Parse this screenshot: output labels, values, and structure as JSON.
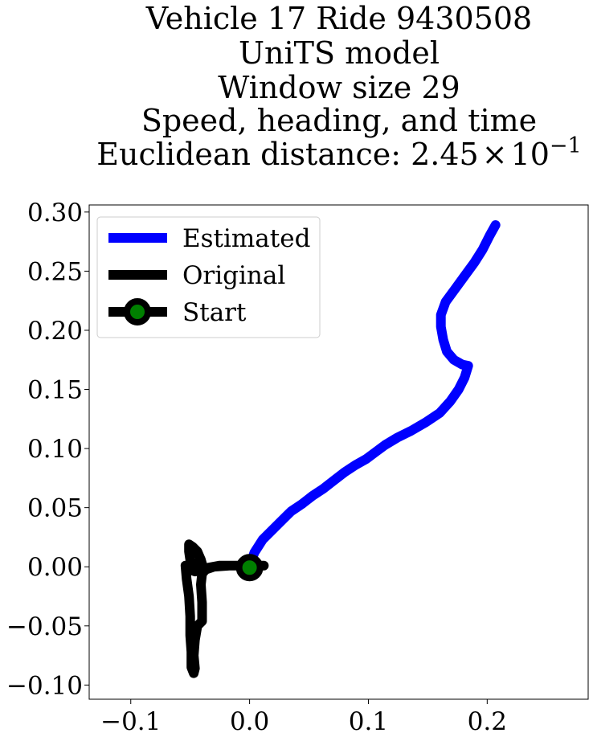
{
  "chart_data": {
    "type": "line",
    "title_lines": [
      "Vehicle 17 Ride 9430508",
      "UniTS model",
      "Window size 29",
      "Speed, heading, and time"
    ],
    "title_metric": {
      "prefix": "Euclidean distance: 2.45",
      "times": "×",
      "base": "10",
      "exponent": "−1"
    },
    "xlabel": "",
    "ylabel": "",
    "xlim": [
      -0.135,
      0.285
    ],
    "ylim": [
      -0.112,
      0.306
    ],
    "xticks": [
      {
        "value": -0.1,
        "label": "−0.1"
      },
      {
        "value": 0.0,
        "label": "0.0"
      },
      {
        "value": 0.1,
        "label": "0.1"
      },
      {
        "value": 0.2,
        "label": "0.2"
      }
    ],
    "yticks": [
      {
        "value": 0.3,
        "label": "0.30"
      },
      {
        "value": 0.25,
        "label": "0.25"
      },
      {
        "value": 0.2,
        "label": "0.20"
      },
      {
        "value": 0.15,
        "label": "0.15"
      },
      {
        "value": 0.1,
        "label": "0.10"
      },
      {
        "value": 0.05,
        "label": "0.05"
      },
      {
        "value": 0.0,
        "label": "0.00"
      },
      {
        "value": -0.05,
        "label": "−0.05"
      },
      {
        "value": -0.1,
        "label": "−0.10"
      }
    ],
    "legend": {
      "position": "upper-left",
      "entries": [
        "Estimated",
        "Original",
        "Start"
      ]
    },
    "series": [
      {
        "name": "Estimated",
        "color": "#0000ff",
        "points": [
          [
            0.0,
            0.0
          ],
          [
            0.004,
            0.012
          ],
          [
            0.011,
            0.023
          ],
          [
            0.02,
            0.032
          ],
          [
            0.028,
            0.04
          ],
          [
            0.035,
            0.047
          ],
          [
            0.044,
            0.053
          ],
          [
            0.053,
            0.06
          ],
          [
            0.062,
            0.066
          ],
          [
            0.071,
            0.073
          ],
          [
            0.08,
            0.08
          ],
          [
            0.089,
            0.086
          ],
          [
            0.098,
            0.091
          ],
          [
            0.106,
            0.097
          ],
          [
            0.114,
            0.103
          ],
          [
            0.124,
            0.109
          ],
          [
            0.136,
            0.115
          ],
          [
            0.148,
            0.122
          ],
          [
            0.16,
            0.13
          ],
          [
            0.169,
            0.14
          ],
          [
            0.176,
            0.15
          ],
          [
            0.181,
            0.16
          ],
          [
            0.184,
            0.17
          ],
          [
            0.179,
            0.171
          ],
          [
            0.172,
            0.175
          ],
          [
            0.166,
            0.182
          ],
          [
            0.163,
            0.192
          ],
          [
            0.161,
            0.203
          ],
          [
            0.161,
            0.213
          ],
          [
            0.165,
            0.224
          ],
          [
            0.173,
            0.235
          ],
          [
            0.181,
            0.246
          ],
          [
            0.189,
            0.257
          ],
          [
            0.196,
            0.268
          ],
          [
            0.202,
            0.28
          ],
          [
            0.207,
            0.289
          ]
        ]
      },
      {
        "name": "Original",
        "color": "#000000",
        "points": [
          [
            0.012,
            0.001
          ],
          [
            0.0,
            0.001
          ],
          [
            -0.016,
            0.001
          ],
          [
            -0.03,
            0.0
          ],
          [
            -0.036,
            -0.002
          ],
          [
            -0.039,
            -0.001
          ],
          [
            -0.041,
            0.006
          ],
          [
            -0.044,
            0.013
          ],
          [
            -0.048,
            0.017
          ],
          [
            -0.051,
            0.019
          ],
          [
            -0.051,
            0.013
          ],
          [
            -0.05,
            0.006
          ],
          [
            -0.047,
            0.001
          ],
          [
            -0.044,
            -0.002
          ],
          [
            -0.046,
            -0.004
          ],
          [
            -0.051,
            -0.002
          ],
          [
            -0.054,
            0.001
          ],
          [
            -0.053,
            -0.01
          ],
          [
            -0.051,
            -0.025
          ],
          [
            -0.05,
            -0.042
          ],
          [
            -0.05,
            -0.058
          ],
          [
            -0.049,
            -0.072
          ],
          [
            -0.049,
            -0.08
          ],
          [
            -0.049,
            -0.085
          ],
          [
            -0.047,
            -0.09
          ],
          [
            -0.046,
            -0.086
          ],
          [
            -0.047,
            -0.075
          ],
          [
            -0.046,
            -0.062
          ],
          [
            -0.044,
            -0.05
          ],
          [
            -0.04,
            -0.046
          ],
          [
            -0.04,
            -0.03
          ],
          [
            -0.041,
            -0.015
          ],
          [
            -0.04,
            -0.006
          ],
          [
            -0.036,
            -0.001
          ],
          [
            -0.025,
            0.001
          ],
          [
            -0.012,
            0.001
          ],
          [
            0.0,
            0.001
          ]
        ]
      }
    ],
    "start_point": {
      "x": 0.0,
      "y": -0.0007,
      "fill": "#008000",
      "edge": "#000000"
    }
  }
}
